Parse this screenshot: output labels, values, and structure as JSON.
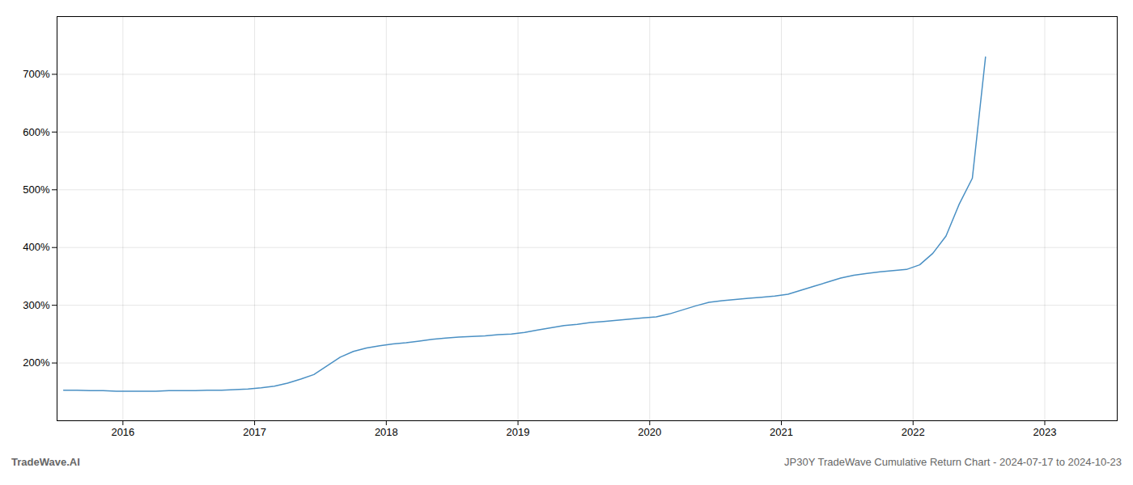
{
  "chart_data": {
    "type": "line",
    "annotations": [
      "TradeWave.AI",
      "JP30Y TradeWave Cumulative Return Chart - 2024-07-17 to 2024-10-23"
    ],
    "color": "#4a90c4",
    "grid": true,
    "x": [
      2015.55,
      2015.65,
      2015.75,
      2015.85,
      2015.95,
      2016.05,
      2016.15,
      2016.25,
      2016.35,
      2016.45,
      2016.55,
      2016.65,
      2016.75,
      2016.85,
      2016.95,
      2017.05,
      2017.15,
      2017.25,
      2017.35,
      2017.45,
      2017.55,
      2017.65,
      2017.75,
      2017.85,
      2017.95,
      2018.05,
      2018.15,
      2018.25,
      2018.35,
      2018.45,
      2018.55,
      2018.65,
      2018.75,
      2018.85,
      2018.95,
      2019.05,
      2019.15,
      2019.25,
      2019.35,
      2019.45,
      2019.55,
      2019.65,
      2019.75,
      2019.85,
      2019.95,
      2020.05,
      2020.15,
      2020.25,
      2020.35,
      2020.45,
      2020.55,
      2020.65,
      2020.75,
      2020.85,
      2020.95,
      2021.05,
      2021.15,
      2021.25,
      2021.35,
      2021.45,
      2021.55,
      2021.65,
      2021.75,
      2021.85,
      2021.95,
      2022.05,
      2022.15,
      2022.25,
      2022.35,
      2022.45,
      2022.55
    ],
    "values": [
      153,
      153,
      152,
      152,
      151,
      151,
      151,
      151,
      152,
      152,
      152,
      153,
      153,
      154,
      155,
      157,
      160,
      165,
      172,
      180,
      195,
      210,
      220,
      226,
      230,
      233,
      235,
      238,
      241,
      243,
      245,
      246,
      247,
      249,
      250,
      253,
      257,
      261,
      265,
      267,
      270,
      272,
      274,
      276,
      278,
      280,
      285,
      292,
      299,
      305,
      308,
      310,
      312,
      314,
      316,
      319,
      326,
      333,
      340,
      347,
      352,
      355,
      358,
      360,
      362,
      370,
      390,
      420,
      475,
      520,
      730
    ],
    "xlim": [
      2015.5,
      2023.55
    ],
    "xticks": [
      2016,
      2017,
      2018,
      2019,
      2020,
      2021,
      2022,
      2023
    ],
    "ylim": [
      100,
      800
    ],
    "yticks": [
      {
        "value": 200,
        "label": "200%"
      },
      {
        "value": 300,
        "label": "300%"
      },
      {
        "value": 400,
        "label": "400%"
      },
      {
        "value": 500,
        "label": "500%"
      },
      {
        "value": 600,
        "label": "600%"
      },
      {
        "value": 700,
        "label": "700%"
      }
    ]
  }
}
